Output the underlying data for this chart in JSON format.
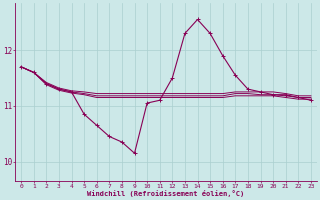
{
  "title": "",
  "xlabel": "Windchill (Refroidissement éolien,°C)",
  "background_color": "#cce8e8",
  "grid_color": "#aacfcf",
  "line_color": "#880055",
  "x_ticks": [
    0,
    1,
    2,
    3,
    4,
    5,
    6,
    7,
    8,
    9,
    10,
    11,
    12,
    13,
    14,
    15,
    16,
    17,
    18,
    19,
    20,
    21,
    22,
    23
  ],
  "y_ticks": [
    10,
    11,
    12
  ],
  "ylim": [
    9.65,
    12.85
  ],
  "xlim": [
    -0.5,
    23.5
  ],
  "series": {
    "main": [
      11.7,
      11.6,
      11.4,
      11.3,
      11.25,
      10.85,
      10.65,
      10.45,
      10.35,
      10.15,
      11.05,
      11.1,
      11.5,
      12.3,
      12.55,
      12.3,
      11.9,
      11.55,
      11.3,
      11.25,
      11.2,
      11.2,
      11.15,
      11.1
    ],
    "line1": [
      11.7,
      11.6,
      11.4,
      11.3,
      11.25,
      11.22,
      11.18,
      11.18,
      11.18,
      11.18,
      11.18,
      11.18,
      11.18,
      11.18,
      11.18,
      11.18,
      11.18,
      11.22,
      11.22,
      11.2,
      11.2,
      11.18,
      11.15,
      11.15
    ],
    "line2": [
      11.7,
      11.6,
      11.42,
      11.32,
      11.27,
      11.25,
      11.22,
      11.22,
      11.22,
      11.22,
      11.22,
      11.22,
      11.22,
      11.22,
      11.22,
      11.22,
      11.22,
      11.25,
      11.25,
      11.25,
      11.25,
      11.22,
      11.18,
      11.18
    ],
    "line3": [
      11.7,
      11.6,
      11.38,
      11.28,
      11.23,
      11.2,
      11.15,
      11.15,
      11.15,
      11.15,
      11.15,
      11.15,
      11.15,
      11.15,
      11.15,
      11.15,
      11.15,
      11.18,
      11.18,
      11.18,
      11.18,
      11.15,
      11.12,
      11.12
    ]
  }
}
